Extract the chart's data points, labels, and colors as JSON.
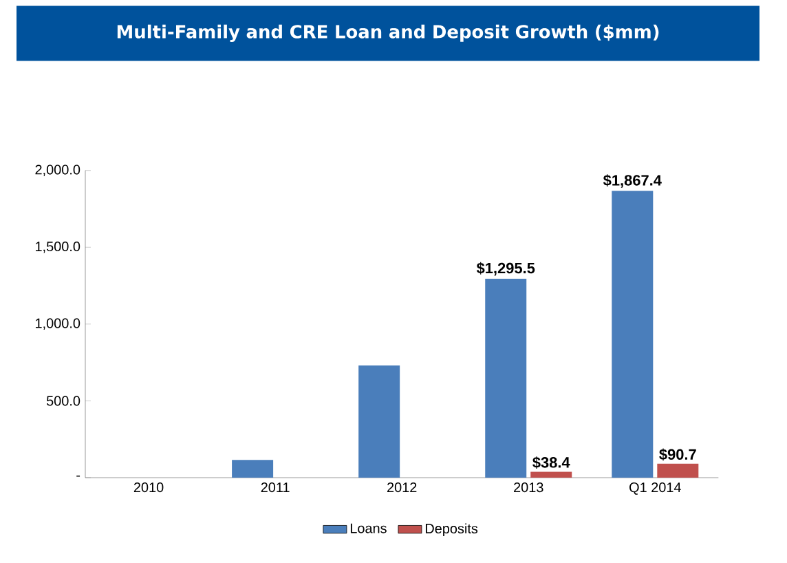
{
  "chart_data": {
    "type": "bar",
    "title": "Multi-Family and CRE Loan and Deposit Growth ($mm)",
    "categories": [
      "2010",
      "2011",
      "2012",
      "2013",
      "Q1 2014"
    ],
    "series": [
      {
        "name": "Loans",
        "color": "#4a7ebb",
        "values": [
          0,
          115,
          730,
          1295.5,
          1867.4
        ],
        "value_labels": [
          null,
          null,
          null,
          "$1,295.5",
          "$1,867.4"
        ]
      },
      {
        "name": "Deposits",
        "color": "#c0504d",
        "values": [
          0,
          0,
          0,
          38.4,
          90.7
        ],
        "value_labels": [
          null,
          null,
          null,
          "$38.4",
          "$90.7"
        ]
      }
    ],
    "ylim": [
      0,
      2000
    ],
    "yticks": [
      {
        "value": 0,
        "label": "-"
      },
      {
        "value": 500,
        "label": "500.0"
      },
      {
        "value": 1000,
        "label": "1,000.0"
      },
      {
        "value": 1500,
        "label": "1,500.0"
      },
      {
        "value": 2000,
        "label": "2,000.0"
      }
    ],
    "grid": false,
    "legend": "bottom"
  }
}
